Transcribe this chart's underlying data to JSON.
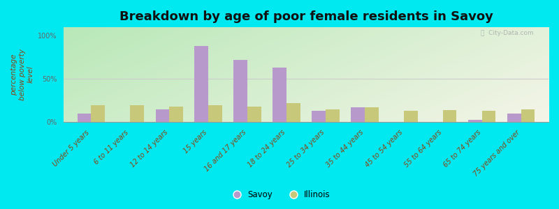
{
  "title": "Breakdown by age of poor female residents in Savoy",
  "ylabel": "percentage\nbelow poverty\nlevel",
  "categories": [
    "Under 5 years",
    "6 to 11 years",
    "12 to 14 years",
    "15 years",
    "16 and 17 years",
    "18 to 24 years",
    "25 to 34 years",
    "35 to 44 years",
    "45 to 54 years",
    "55 to 64 years",
    "65 to 74 years",
    "75 years and over"
  ],
  "savoy_values": [
    10,
    0,
    15,
    88,
    72,
    63,
    13,
    17,
    0,
    0,
    3,
    10
  ],
  "illinois_values": [
    20,
    20,
    18,
    20,
    18,
    22,
    15,
    17,
    13,
    14,
    13,
    15
  ],
  "savoy_color": "#b899cc",
  "illinois_color": "#c8c87a",
  "bg_color_topleft": "#b8e8b8",
  "bg_color_right": "#f5f5e8",
  "outer_background": "#00e8f0",
  "title_fontsize": 13,
  "axis_label_fontsize": 7.5,
  "tick_fontsize": 7,
  "ylim": [
    0,
    110
  ],
  "yticks": [
    0,
    50,
    100
  ],
  "ytick_labels": [
    "0%",
    "50%",
    "100%"
  ],
  "legend_savoy": "Savoy",
  "legend_illinois": "Illinois",
  "watermark": "ⓘ  City-Data.com"
}
